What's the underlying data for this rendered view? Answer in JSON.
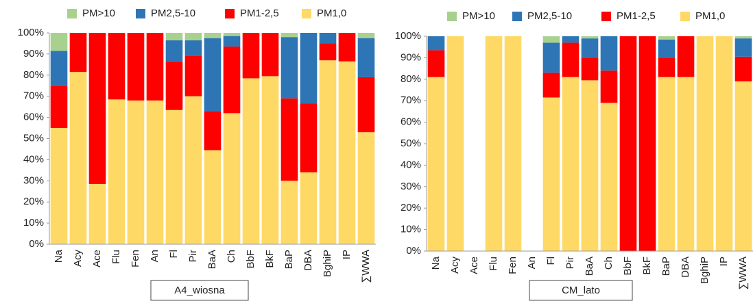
{
  "chart_data": [
    {
      "type": "bar",
      "stacked": true,
      "title": "A4_wiosna",
      "categories": [
        "Na",
        "Acy",
        "Ace",
        "Flu",
        "Fen",
        "An",
        "Fl",
        "Pir",
        "BaA",
        "Ch",
        "BbF",
        "BkF",
        "BaP",
        "DBA",
        "BghiP",
        "IP",
        "∑WWA"
      ],
      "series": [
        {
          "name": "PM>10",
          "color": "#a9d18e",
          "values": [
            8.5,
            0,
            0,
            0,
            0,
            0,
            3.5,
            3.5,
            2.5,
            1.5,
            0,
            0,
            2,
            0,
            0,
            0,
            2.5
          ]
        },
        {
          "name": "PM2,5-10",
          "color": "#2e75b6",
          "values": [
            16.5,
            0,
            0,
            0,
            0,
            0,
            10,
            7.5,
            34.5,
            5,
            0,
            0,
            29,
            33.5,
            5,
            0,
            18.5
          ]
        },
        {
          "name": "PM1-2,5",
          "color": "#ff0000",
          "values": [
            20,
            18.5,
            71.5,
            31.5,
            32,
            32,
            23,
            19,
            18.5,
            31.5,
            21.5,
            20.5,
            39,
            32.5,
            8,
            13.5,
            26
          ]
        },
        {
          "name": "PM1,0",
          "color": "#ffd966",
          "values": [
            55,
            81.5,
            28.5,
            68.5,
            68,
            68,
            63.5,
            70,
            44.5,
            62,
            78.5,
            79.5,
            30,
            34,
            87,
            86.5,
            53
          ]
        }
      ],
      "ylim": [
        0,
        100
      ],
      "yticks": [
        {
          "value": 0,
          "label": "0%"
        },
        {
          "value": 10,
          "label": "10%"
        },
        {
          "value": 20,
          "label": "20%"
        },
        {
          "value": 30,
          "label": "30%"
        },
        {
          "value": 40,
          "label": "40%"
        },
        {
          "value": 50,
          "label": "50%"
        },
        {
          "value": 60,
          "label": "60%"
        },
        {
          "value": 70,
          "label": "70%"
        },
        {
          "value": 80,
          "label": "80%"
        },
        {
          "value": 90,
          "label": "90%"
        },
        {
          "value": 100,
          "label": "100%"
        }
      ],
      "legend": "top"
    },
    {
      "type": "bar",
      "stacked": true,
      "title": "CM_lato",
      "categories": [
        "Na",
        "Acy",
        "Ace",
        "Flu",
        "Fen",
        "An",
        "Fl",
        "Pir",
        "BaA",
        "Ch",
        "BbF",
        "BkF",
        "BaP",
        "DBA",
        "BghiP",
        "IP",
        "∑WWA"
      ],
      "series": [
        {
          "name": "PM>10",
          "color": "#a9d18e",
          "values": [
            0,
            0,
            0,
            0,
            0,
            0,
            3,
            0,
            1,
            0,
            0,
            0,
            1.5,
            0,
            0,
            0,
            1
          ]
        },
        {
          "name": "PM2,5-10",
          "color": "#2e75b6",
          "values": [
            6.5,
            0,
            0,
            0,
            0,
            0,
            14,
            3,
            9,
            16,
            0,
            0,
            8.5,
            0,
            0,
            0,
            8.5
          ]
        },
        {
          "name": "PM1-2,5",
          "color": "#ff0000",
          "values": [
            12.5,
            0,
            0,
            0,
            0,
            0,
            11.5,
            16,
            10.5,
            15,
            100,
            100,
            9,
            19,
            0,
            0,
            11.5
          ]
        },
        {
          "name": "PM1,0",
          "color": "#ffd966",
          "values": [
            81,
            100,
            0,
            100,
            100,
            0,
            71.5,
            81,
            79.5,
            69,
            0,
            0,
            81,
            81,
            100,
            100,
            79
          ]
        }
      ],
      "ylim": [
        0,
        100
      ],
      "yticks": [
        {
          "value": 0,
          "label": "0%"
        },
        {
          "value": 10,
          "label": "10%"
        },
        {
          "value": 20,
          "label": "20%"
        },
        {
          "value": 30,
          "label": "30%"
        },
        {
          "value": 40,
          "label": "40%"
        },
        {
          "value": 50,
          "label": "50%"
        },
        {
          "value": 60,
          "label": "60%"
        },
        {
          "value": 70,
          "label": "70%"
        },
        {
          "value": 80,
          "label": "80%"
        },
        {
          "value": 90,
          "label": "90%"
        },
        {
          "value": 100,
          "label": "100%"
        }
      ],
      "legend": "top"
    }
  ]
}
